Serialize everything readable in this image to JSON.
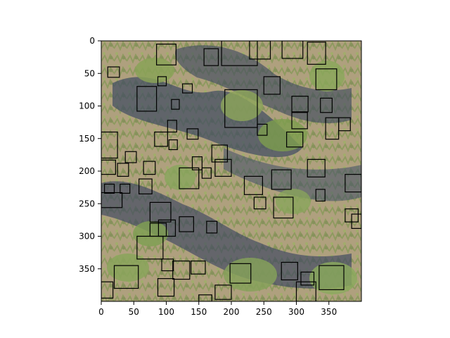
{
  "figure": {
    "image_description_visible": "",
    "x_ticks": [
      "0",
      "50",
      "100",
      "150",
      "200",
      "250",
      "300",
      "350"
    ],
    "y_ticks": [
      "0",
      "50",
      "100",
      "150",
      "200",
      "250",
      "300",
      "350"
    ],
    "extent": {
      "x": [
        0,
        400
      ],
      "y": [
        0,
        400
      ]
    },
    "colors": {
      "box_stroke": "#000000",
      "ground": "#b9a98a",
      "vegetation": "#7f9a4c",
      "shadow": "#3f4a63"
    },
    "boxes": [
      [
        10,
        40,
        18,
        16
      ],
      [
        85,
        5,
        30,
        32
      ],
      [
        158,
        12,
        22,
        26
      ],
      [
        185,
        0,
        55,
        38
      ],
      [
        228,
        0,
        32,
        28
      ],
      [
        278,
        0,
        32,
        27
      ],
      [
        317,
        2,
        28,
        34
      ],
      [
        330,
        43,
        32,
        32
      ],
      [
        250,
        55,
        25,
        27
      ],
      [
        87,
        55,
        13,
        14
      ],
      [
        125,
        66,
        15,
        14
      ],
      [
        55,
        70,
        30,
        38
      ],
      [
        190,
        75,
        50,
        58
      ],
      [
        293,
        85,
        25,
        24
      ],
      [
        337,
        88,
        18,
        22
      ],
      [
        108,
        90,
        12,
        15
      ],
      [
        293,
        110,
        24,
        25
      ],
      [
        0,
        140,
        25,
        40
      ],
      [
        102,
        122,
        14,
        18
      ],
      [
        132,
        135,
        17,
        16
      ],
      [
        82,
        140,
        20,
        22
      ],
      [
        104,
        152,
        13,
        15
      ],
      [
        240,
        128,
        15,
        17
      ],
      [
        345,
        118,
        20,
        33
      ],
      [
        365,
        118,
        18,
        20
      ],
      [
        285,
        140,
        25,
        23
      ],
      [
        170,
        160,
        24,
        26
      ],
      [
        37,
        170,
        17,
        17
      ],
      [
        0,
        183,
        22,
        22
      ],
      [
        25,
        188,
        17,
        20
      ],
      [
        65,
        185,
        18,
        20
      ],
      [
        120,
        195,
        30,
        32
      ],
      [
        140,
        178,
        15,
        20
      ],
      [
        155,
        195,
        14,
        16
      ],
      [
        175,
        182,
        25,
        26
      ],
      [
        317,
        182,
        27,
        27
      ],
      [
        375,
        205,
        25,
        27
      ],
      [
        220,
        208,
        28,
        28
      ],
      [
        262,
        198,
        30,
        30
      ],
      [
        58,
        212,
        20,
        23
      ],
      [
        0,
        233,
        32,
        23
      ],
      [
        29,
        220,
        15,
        14
      ],
      [
        5,
        220,
        15,
        14
      ],
      [
        235,
        240,
        18,
        18
      ],
      [
        330,
        228,
        14,
        18
      ],
      [
        75,
        248,
        32,
        30
      ],
      [
        265,
        240,
        30,
        32
      ],
      [
        75,
        280,
        25,
        20
      ],
      [
        88,
        275,
        26,
        25
      ],
      [
        120,
        270,
        22,
        23
      ],
      [
        162,
        277,
        16,
        18
      ],
      [
        55,
        300,
        40,
        35
      ],
      [
        93,
        335,
        18,
        18
      ],
      [
        110,
        338,
        26,
        28
      ],
      [
        138,
        338,
        22,
        20
      ],
      [
        198,
        342,
        32,
        30
      ],
      [
        277,
        340,
        25,
        27
      ],
      [
        307,
        355,
        20,
        20
      ],
      [
        335,
        345,
        38,
        37
      ],
      [
        0,
        370,
        18,
        25
      ],
      [
        20,
        345,
        37,
        35
      ],
      [
        87,
        365,
        25,
        27
      ],
      [
        175,
        375,
        25,
        22
      ],
      [
        150,
        390,
        20,
        10
      ],
      [
        300,
        370,
        30,
        30
      ],
      [
        375,
        258,
        20,
        20
      ],
      [
        385,
        266,
        15,
        22
      ]
    ]
  }
}
